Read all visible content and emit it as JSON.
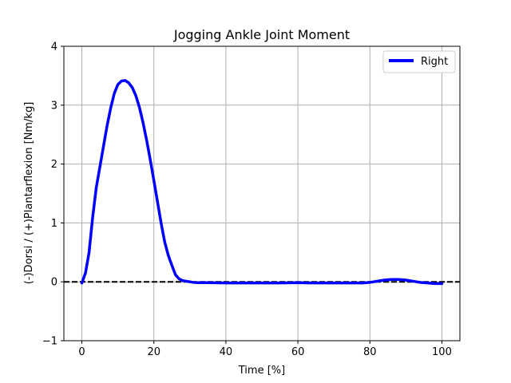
{
  "chart_data": {
    "type": "line",
    "title": "Jogging Ankle Joint Moment",
    "xlabel": "Time [%]",
    "ylabel": "(-)Dorsi / (+)Plantarflexion [Nm/kg]",
    "xlim": [
      -5,
      105
    ],
    "ylim": [
      -1,
      4
    ],
    "xticks": [
      0,
      20,
      40,
      60,
      80,
      100
    ],
    "yticks": [
      -1,
      0,
      1,
      2,
      3,
      4
    ],
    "xtick_labels": [
      "0",
      "20",
      "40",
      "60",
      "80",
      "100"
    ],
    "ytick_labels": [
      "−1",
      "0",
      "1",
      "2",
      "3",
      "4"
    ],
    "grid": true,
    "legend_position": "top-right",
    "reference_line": {
      "y": 0,
      "style": "dashed",
      "color": "#000000"
    },
    "series": [
      {
        "name": "Right",
        "color": "#0000ff",
        "x": [
          0,
          1,
          2,
          3,
          4,
          5,
          6,
          7,
          8,
          9,
          10,
          11,
          12,
          13,
          14,
          15,
          16,
          17,
          18,
          19,
          20,
          21,
          22,
          23,
          24,
          25,
          26,
          27,
          28,
          29,
          30,
          31,
          32,
          35,
          40,
          45,
          50,
          55,
          60,
          65,
          70,
          75,
          78,
          80,
          82,
          84,
          86,
          88,
          90,
          92,
          94,
          96,
          98,
          100
        ],
        "y": [
          -0.02,
          0.15,
          0.5,
          1.1,
          1.6,
          1.95,
          2.3,
          2.65,
          2.95,
          3.2,
          3.35,
          3.41,
          3.42,
          3.38,
          3.3,
          3.16,
          2.96,
          2.7,
          2.4,
          2.07,
          1.72,
          1.36,
          1.0,
          0.68,
          0.45,
          0.28,
          0.12,
          0.05,
          0.02,
          0.01,
          0.0,
          -0.01,
          -0.015,
          -0.015,
          -0.02,
          -0.02,
          -0.02,
          -0.02,
          -0.015,
          -0.02,
          -0.02,
          -0.02,
          -0.02,
          -0.01,
          0.01,
          0.03,
          0.04,
          0.04,
          0.03,
          0.01,
          -0.01,
          -0.02,
          -0.03,
          -0.03
        ]
      }
    ]
  }
}
